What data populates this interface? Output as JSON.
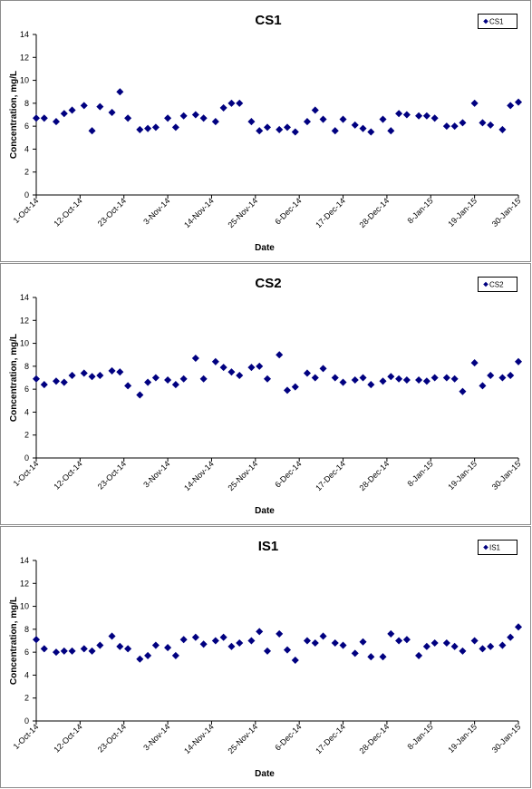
{
  "chart_data": [
    {
      "type": "scatter",
      "title": "CS1",
      "xlabel": "Date",
      "ylabel": "Concentration, mg/L",
      "ylim": [
        0,
        14
      ],
      "yticks": [
        "0",
        "2",
        "4",
        "6",
        "8",
        "10",
        "12",
        "14"
      ],
      "xlim": [
        "2014-10-01",
        "2015-01-30"
      ],
      "xticks": [
        {
          "date": "2014-10-01",
          "label": "1-Oct-14"
        },
        {
          "date": "2014-10-12",
          "label": "12-Oct-14"
        },
        {
          "date": "2014-10-23",
          "label": "23-Oct-14"
        },
        {
          "date": "2014-11-03",
          "label": "3-Nov-14"
        },
        {
          "date": "2014-11-14",
          "label": "14-Nov-14"
        },
        {
          "date": "2014-11-25",
          "label": "25-Nov-14"
        },
        {
          "date": "2014-12-06",
          "label": "6-Dec-14"
        },
        {
          "date": "2014-12-17",
          "label": "17-Dec-14"
        },
        {
          "date": "2014-12-28",
          "label": "28-Dec-14"
        },
        {
          "date": "2015-01-08",
          "label": "8-Jan-15"
        },
        {
          "date": "2015-01-19",
          "label": "19-Jan-15"
        },
        {
          "date": "2015-01-30",
          "label": "30-Jan-15"
        }
      ],
      "legend_position": "top-right",
      "grid": false,
      "series": [
        {
          "name": "CS1",
          "color": "#000080",
          "points": [
            {
              "x": "2014-10-01",
              "y": 6.7
            },
            {
              "x": "2014-10-03",
              "y": 6.7
            },
            {
              "x": "2014-10-06",
              "y": 6.4
            },
            {
              "x": "2014-10-08",
              "y": 7.1
            },
            {
              "x": "2014-10-10",
              "y": 7.4
            },
            {
              "x": "2014-10-13",
              "y": 7.8
            },
            {
              "x": "2014-10-15",
              "y": 5.6
            },
            {
              "x": "2014-10-17",
              "y": 7.7
            },
            {
              "x": "2014-10-20",
              "y": 7.2
            },
            {
              "x": "2014-10-22",
              "y": 9.0
            },
            {
              "x": "2014-10-24",
              "y": 6.7
            },
            {
              "x": "2014-10-27",
              "y": 5.7
            },
            {
              "x": "2014-10-29",
              "y": 5.8
            },
            {
              "x": "2014-10-31",
              "y": 5.9
            },
            {
              "x": "2014-11-03",
              "y": 6.7
            },
            {
              "x": "2014-11-05",
              "y": 5.9
            },
            {
              "x": "2014-11-07",
              "y": 6.9
            },
            {
              "x": "2014-11-10",
              "y": 7.0
            },
            {
              "x": "2014-11-12",
              "y": 6.7
            },
            {
              "x": "2014-11-15",
              "y": 6.4
            },
            {
              "x": "2014-11-17",
              "y": 7.6
            },
            {
              "x": "2014-11-19",
              "y": 8.0
            },
            {
              "x": "2014-11-21",
              "y": 8.0
            },
            {
              "x": "2014-11-24",
              "y": 6.4
            },
            {
              "x": "2014-11-26",
              "y": 5.6
            },
            {
              "x": "2014-11-28",
              "y": 5.9
            },
            {
              "x": "2014-12-01",
              "y": 5.7
            },
            {
              "x": "2014-12-03",
              "y": 5.9
            },
            {
              "x": "2014-12-05",
              "y": 5.5
            },
            {
              "x": "2014-12-08",
              "y": 6.4
            },
            {
              "x": "2014-12-10",
              "y": 7.4
            },
            {
              "x": "2014-12-12",
              "y": 6.6
            },
            {
              "x": "2014-12-15",
              "y": 5.6
            },
            {
              "x": "2014-12-17",
              "y": 6.6
            },
            {
              "x": "2014-12-20",
              "y": 6.1
            },
            {
              "x": "2014-12-22",
              "y": 5.8
            },
            {
              "x": "2014-12-24",
              "y": 5.5
            },
            {
              "x": "2014-12-27",
              "y": 6.6
            },
            {
              "x": "2014-12-29",
              "y": 5.6
            },
            {
              "x": "2014-12-31",
              "y": 7.1
            },
            {
              "x": "2015-01-02",
              "y": 7.0
            },
            {
              "x": "2015-01-05",
              "y": 6.9
            },
            {
              "x": "2015-01-07",
              "y": 6.9
            },
            {
              "x": "2015-01-09",
              "y": 6.7
            },
            {
              "x": "2015-01-12",
              "y": 6.0
            },
            {
              "x": "2015-01-14",
              "y": 6.0
            },
            {
              "x": "2015-01-16",
              "y": 6.3
            },
            {
              "x": "2015-01-19",
              "y": 8.0
            },
            {
              "x": "2015-01-21",
              "y": 6.3
            },
            {
              "x": "2015-01-23",
              "y": 6.1
            },
            {
              "x": "2015-01-26",
              "y": 5.7
            },
            {
              "x": "2015-01-28",
              "y": 7.8
            },
            {
              "x": "2015-01-30",
              "y": 8.1
            }
          ]
        }
      ]
    },
    {
      "type": "scatter",
      "title": "CS2",
      "xlabel": "Date",
      "ylabel": "Concentration, mg/L",
      "ylim": [
        0,
        14
      ],
      "yticks": [
        "0",
        "2",
        "4",
        "6",
        "8",
        "10",
        "12",
        "14"
      ],
      "xlim": [
        "2014-10-01",
        "2015-01-30"
      ],
      "xticks": [
        {
          "date": "2014-10-01",
          "label": "1-Oct-14"
        },
        {
          "date": "2014-10-12",
          "label": "12-Oct-14"
        },
        {
          "date": "2014-10-23",
          "label": "23-Oct-14"
        },
        {
          "date": "2014-11-03",
          "label": "3-Nov-14"
        },
        {
          "date": "2014-11-14",
          "label": "14-Nov-14"
        },
        {
          "date": "2014-11-25",
          "label": "25-Nov-14"
        },
        {
          "date": "2014-12-06",
          "label": "6-Dec-14"
        },
        {
          "date": "2014-12-17",
          "label": "17-Dec-14"
        },
        {
          "date": "2014-12-28",
          "label": "28-Dec-14"
        },
        {
          "date": "2015-01-08",
          "label": "8-Jan-15"
        },
        {
          "date": "2015-01-19",
          "label": "19-Jan-15"
        },
        {
          "date": "2015-01-30",
          "label": "30-Jan-15"
        }
      ],
      "legend_position": "top-right",
      "grid": false,
      "series": [
        {
          "name": "CS2",
          "color": "#000080",
          "points": [
            {
              "x": "2014-10-01",
              "y": 6.9
            },
            {
              "x": "2014-10-03",
              "y": 6.4
            },
            {
              "x": "2014-10-06",
              "y": 6.7
            },
            {
              "x": "2014-10-08",
              "y": 6.6
            },
            {
              "x": "2014-10-10",
              "y": 7.2
            },
            {
              "x": "2014-10-13",
              "y": 7.4
            },
            {
              "x": "2014-10-15",
              "y": 7.1
            },
            {
              "x": "2014-10-17",
              "y": 7.2
            },
            {
              "x": "2014-10-20",
              "y": 7.6
            },
            {
              "x": "2014-10-22",
              "y": 7.5
            },
            {
              "x": "2014-10-24",
              "y": 6.3
            },
            {
              "x": "2014-10-27",
              "y": 5.5
            },
            {
              "x": "2014-10-29",
              "y": 6.6
            },
            {
              "x": "2014-10-31",
              "y": 7.0
            },
            {
              "x": "2014-11-03",
              "y": 6.8
            },
            {
              "x": "2014-11-05",
              "y": 6.4
            },
            {
              "x": "2014-11-07",
              "y": 6.9
            },
            {
              "x": "2014-11-10",
              "y": 8.7
            },
            {
              "x": "2014-11-12",
              "y": 6.9
            },
            {
              "x": "2014-11-15",
              "y": 8.4
            },
            {
              "x": "2014-11-17",
              "y": 7.9
            },
            {
              "x": "2014-11-19",
              "y": 7.5
            },
            {
              "x": "2014-11-21",
              "y": 7.2
            },
            {
              "x": "2014-11-24",
              "y": 7.9
            },
            {
              "x": "2014-11-26",
              "y": 8.0
            },
            {
              "x": "2014-11-28",
              "y": 6.9
            },
            {
              "x": "2014-12-01",
              "y": 9.0
            },
            {
              "x": "2014-12-03",
              "y": 5.9
            },
            {
              "x": "2014-12-05",
              "y": 6.2
            },
            {
              "x": "2014-12-08",
              "y": 7.4
            },
            {
              "x": "2014-12-10",
              "y": 7.0
            },
            {
              "x": "2014-12-12",
              "y": 7.8
            },
            {
              "x": "2014-12-15",
              "y": 7.0
            },
            {
              "x": "2014-12-17",
              "y": 6.6
            },
            {
              "x": "2014-12-20",
              "y": 6.8
            },
            {
              "x": "2014-12-22",
              "y": 7.0
            },
            {
              "x": "2014-12-24",
              "y": 6.4
            },
            {
              "x": "2014-12-27",
              "y": 6.7
            },
            {
              "x": "2014-12-29",
              "y": 7.1
            },
            {
              "x": "2014-12-31",
              "y": 6.9
            },
            {
              "x": "2015-01-02",
              "y": 6.8
            },
            {
              "x": "2015-01-05",
              "y": 6.8
            },
            {
              "x": "2015-01-07",
              "y": 6.7
            },
            {
              "x": "2015-01-09",
              "y": 7.0
            },
            {
              "x": "2015-01-12",
              "y": 7.0
            },
            {
              "x": "2015-01-14",
              "y": 6.9
            },
            {
              "x": "2015-01-16",
              "y": 5.8
            },
            {
              "x": "2015-01-19",
              "y": 8.3
            },
            {
              "x": "2015-01-21",
              "y": 6.3
            },
            {
              "x": "2015-01-23",
              "y": 7.2
            },
            {
              "x": "2015-01-26",
              "y": 7.0
            },
            {
              "x": "2015-01-28",
              "y": 7.2
            },
            {
              "x": "2015-01-30",
              "y": 8.4
            }
          ]
        }
      ]
    },
    {
      "type": "scatter",
      "title": "IS1",
      "xlabel": "Date",
      "ylabel": "Concentration, mg/L",
      "ylim": [
        0,
        14
      ],
      "yticks": [
        "0",
        "2",
        "4",
        "6",
        "8",
        "10",
        "12",
        "14"
      ],
      "xlim": [
        "2014-10-01",
        "2015-01-30"
      ],
      "xticks": [
        {
          "date": "2014-10-01",
          "label": "1-Oct-14"
        },
        {
          "date": "2014-10-12",
          "label": "12-Oct-14"
        },
        {
          "date": "2014-10-23",
          "label": "23-Oct-14"
        },
        {
          "date": "2014-11-03",
          "label": "3-Nov-14"
        },
        {
          "date": "2014-11-14",
          "label": "14-Nov-14"
        },
        {
          "date": "2014-11-25",
          "label": "25-Nov-14"
        },
        {
          "date": "2014-12-06",
          "label": "6-Dec-14"
        },
        {
          "date": "2014-12-17",
          "label": "17-Dec-14"
        },
        {
          "date": "2014-12-28",
          "label": "28-Dec-14"
        },
        {
          "date": "2015-01-08",
          "label": "8-Jan-15"
        },
        {
          "date": "2015-01-19",
          "label": "19-Jan-15"
        },
        {
          "date": "2015-01-30",
          "label": "30-Jan-15"
        }
      ],
      "legend_position": "top-right",
      "grid": false,
      "series": [
        {
          "name": "IS1",
          "color": "#000080",
          "points": [
            {
              "x": "2014-10-01",
              "y": 7.1
            },
            {
              "x": "2014-10-03",
              "y": 6.3
            },
            {
              "x": "2014-10-06",
              "y": 6.0
            },
            {
              "x": "2014-10-08",
              "y": 6.1
            },
            {
              "x": "2014-10-10",
              "y": 6.1
            },
            {
              "x": "2014-10-13",
              "y": 6.3
            },
            {
              "x": "2014-10-15",
              "y": 6.1
            },
            {
              "x": "2014-10-17",
              "y": 6.6
            },
            {
              "x": "2014-10-20",
              "y": 7.4
            },
            {
              "x": "2014-10-22",
              "y": 6.5
            },
            {
              "x": "2014-10-24",
              "y": 6.3
            },
            {
              "x": "2014-10-27",
              "y": 5.4
            },
            {
              "x": "2014-10-29",
              "y": 5.7
            },
            {
              "x": "2014-10-31",
              "y": 6.6
            },
            {
              "x": "2014-11-03",
              "y": 6.4
            },
            {
              "x": "2014-11-05",
              "y": 5.7
            },
            {
              "x": "2014-11-07",
              "y": 7.1
            },
            {
              "x": "2014-11-10",
              "y": 7.3
            },
            {
              "x": "2014-11-12",
              "y": 6.7
            },
            {
              "x": "2014-11-15",
              "y": 7.0
            },
            {
              "x": "2014-11-17",
              "y": 7.3
            },
            {
              "x": "2014-11-19",
              "y": 6.5
            },
            {
              "x": "2014-11-21",
              "y": 6.8
            },
            {
              "x": "2014-11-24",
              "y": 7.0
            },
            {
              "x": "2014-11-26",
              "y": 7.8
            },
            {
              "x": "2014-11-28",
              "y": 6.1
            },
            {
              "x": "2014-12-01",
              "y": 7.6
            },
            {
              "x": "2014-12-03",
              "y": 6.2
            },
            {
              "x": "2014-12-05",
              "y": 5.3
            },
            {
              "x": "2014-12-08",
              "y": 7.0
            },
            {
              "x": "2014-12-10",
              "y": 6.8
            },
            {
              "x": "2014-12-12",
              "y": 7.4
            },
            {
              "x": "2014-12-15",
              "y": 6.8
            },
            {
              "x": "2014-12-17",
              "y": 6.6
            },
            {
              "x": "2014-12-20",
              "y": 5.9
            },
            {
              "x": "2014-12-22",
              "y": 6.9
            },
            {
              "x": "2014-12-24",
              "y": 5.6
            },
            {
              "x": "2014-12-27",
              "y": 5.6
            },
            {
              "x": "2014-12-29",
              "y": 7.6
            },
            {
              "x": "2014-12-31",
              "y": 7.0
            },
            {
              "x": "2015-01-02",
              "y": 7.1
            },
            {
              "x": "2015-01-05",
              "y": 5.7
            },
            {
              "x": "2015-01-07",
              "y": 6.5
            },
            {
              "x": "2015-01-09",
              "y": 6.8
            },
            {
              "x": "2015-01-12",
              "y": 6.8
            },
            {
              "x": "2015-01-14",
              "y": 6.5
            },
            {
              "x": "2015-01-16",
              "y": 6.1
            },
            {
              "x": "2015-01-19",
              "y": 7.0
            },
            {
              "x": "2015-01-21",
              "y": 6.3
            },
            {
              "x": "2015-01-23",
              "y": 6.5
            },
            {
              "x": "2015-01-26",
              "y": 6.6
            },
            {
              "x": "2015-01-28",
              "y": 7.3
            },
            {
              "x": "2015-01-30",
              "y": 8.2
            }
          ]
        }
      ]
    }
  ]
}
